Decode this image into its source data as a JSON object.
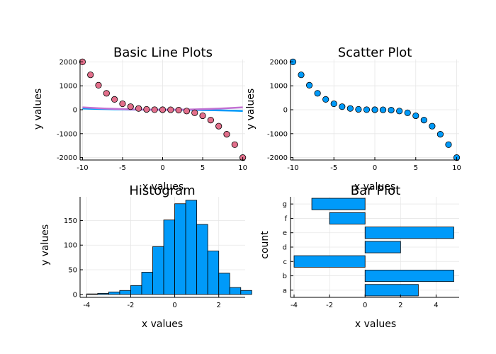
{
  "chart_data": [
    {
      "type": "line",
      "title": "Basic Line Plots",
      "xlabel": "x values",
      "ylabel": "y values",
      "xlim": [
        -10.3,
        10.3
      ],
      "ylim": [
        -2100,
        2100
      ],
      "xticks": [
        -10,
        -5,
        0,
        5,
        10
      ],
      "yticks": [
        -2000,
        -1000,
        0,
        1000,
        2000
      ],
      "series": [
        {
          "kind": "line",
          "color": "#009af9",
          "x": [
            -10,
            -9,
            -8,
            -7,
            -6,
            -5,
            -4,
            -3,
            -2,
            -1,
            0,
            1,
            2,
            3,
            4,
            5,
            6,
            7,
            8,
            9,
            10
          ],
          "y": [
            50,
            41,
            32,
            25,
            18,
            13,
            8,
            5,
            2,
            1,
            0,
            -1,
            -2,
            -5,
            -8,
            -13,
            -18,
            -25,
            -32,
            -41,
            -50
          ]
        },
        {
          "kind": "line",
          "color": "#c271d2",
          "x": [
            -10,
            -9,
            -8,
            -7,
            -6,
            -5,
            -4,
            -3,
            -2,
            -1,
            0,
            1,
            2,
            3,
            4,
            5,
            6,
            7,
            8,
            9,
            10
          ],
          "y": [
            100,
            81,
            64,
            49,
            36,
            25,
            16,
            9,
            4,
            1,
            0,
            1,
            4,
            9,
            16,
            25,
            36,
            49,
            64,
            81,
            100
          ]
        },
        {
          "kind": "scatter",
          "color": "#e26f8b",
          "x": [
            -10,
            -9,
            -8,
            -7,
            -6,
            -5,
            -4,
            -3,
            -2,
            -1,
            0,
            1,
            2,
            3,
            4,
            5,
            6,
            7,
            8,
            9,
            10
          ],
          "y": [
            2000,
            1458,
            1024,
            686,
            432,
            250,
            128,
            54,
            16,
            2,
            0,
            -2,
            -16,
            -54,
            -128,
            -250,
            -432,
            -686,
            -1024,
            -1458,
            -2000
          ]
        }
      ]
    },
    {
      "type": "scatter",
      "title": "Scatter Plot",
      "xlabel": "x values",
      "ylabel": "y values",
      "xlim": [
        -10.3,
        10.3
      ],
      "ylim": [
        -2100,
        2100
      ],
      "xticks": [
        -10,
        -5,
        0,
        5,
        10
      ],
      "yticks": [
        -2000,
        -1000,
        0,
        1000,
        2000
      ],
      "series": [
        {
          "kind": "scatter",
          "color": "#009af9",
          "x": [
            -10,
            -9,
            -8,
            -7,
            -6,
            -5,
            -4,
            -3,
            -2,
            -1,
            0,
            1,
            2,
            3,
            4,
            5,
            6,
            7,
            8,
            9,
            10
          ],
          "y": [
            2000,
            1458,
            1024,
            686,
            432,
            250,
            128,
            54,
            16,
            2,
            0,
            -2,
            -16,
            -54,
            -128,
            -250,
            -432,
            -686,
            -1024,
            -1458,
            -2000
          ]
        }
      ]
    },
    {
      "type": "bar",
      "title": "Histogram",
      "xlabel": "x values",
      "ylabel": "y values",
      "xlim": [
        -4.3,
        3.2
      ],
      "ylim": [
        -6,
        198
      ],
      "xticks": [
        -4,
        -2,
        0,
        2
      ],
      "yticks": [
        0,
        50,
        100,
        150
      ],
      "bar_color": "#009af9",
      "bins": [
        {
          "left": -4.0,
          "right": -3.5,
          "count": 1
        },
        {
          "left": -3.5,
          "right": -3.0,
          "count": 2
        },
        {
          "left": -3.0,
          "right": -2.5,
          "count": 5
        },
        {
          "left": -2.5,
          "right": -2.0,
          "count": 8
        },
        {
          "left": -2.0,
          "right": -1.5,
          "count": 18
        },
        {
          "left": -1.5,
          "right": -1.0,
          "count": 45
        },
        {
          "left": -1.0,
          "right": -0.5,
          "count": 97
        },
        {
          "left": -0.5,
          "right": 0.0,
          "count": 151
        },
        {
          "left": 0.0,
          "right": 0.5,
          "count": 184
        },
        {
          "left": 0.5,
          "right": 1.0,
          "count": 191
        },
        {
          "left": 1.0,
          "right": 1.5,
          "count": 142
        },
        {
          "left": 1.5,
          "right": 2.0,
          "count": 88
        },
        {
          "left": 2.0,
          "right": 2.5,
          "count": 43
        },
        {
          "left": 2.5,
          "right": 3.0,
          "count": 14
        },
        {
          "left": 3.0,
          "right": 3.5,
          "count": 8
        }
      ]
    },
    {
      "type": "bar",
      "orientation": "horizontal",
      "title": "Bar Plot",
      "xlabel": "x values",
      "ylabel": "count",
      "xlim": [
        -4.2,
        5.3
      ],
      "xticks": [
        -4,
        -2,
        0,
        2,
        4
      ],
      "bar_color": "#009af9",
      "categories": [
        "a",
        "b",
        "c",
        "d",
        "e",
        "f",
        "g"
      ],
      "values": [
        3,
        5,
        -4,
        2,
        5,
        -2,
        -3
      ]
    }
  ]
}
